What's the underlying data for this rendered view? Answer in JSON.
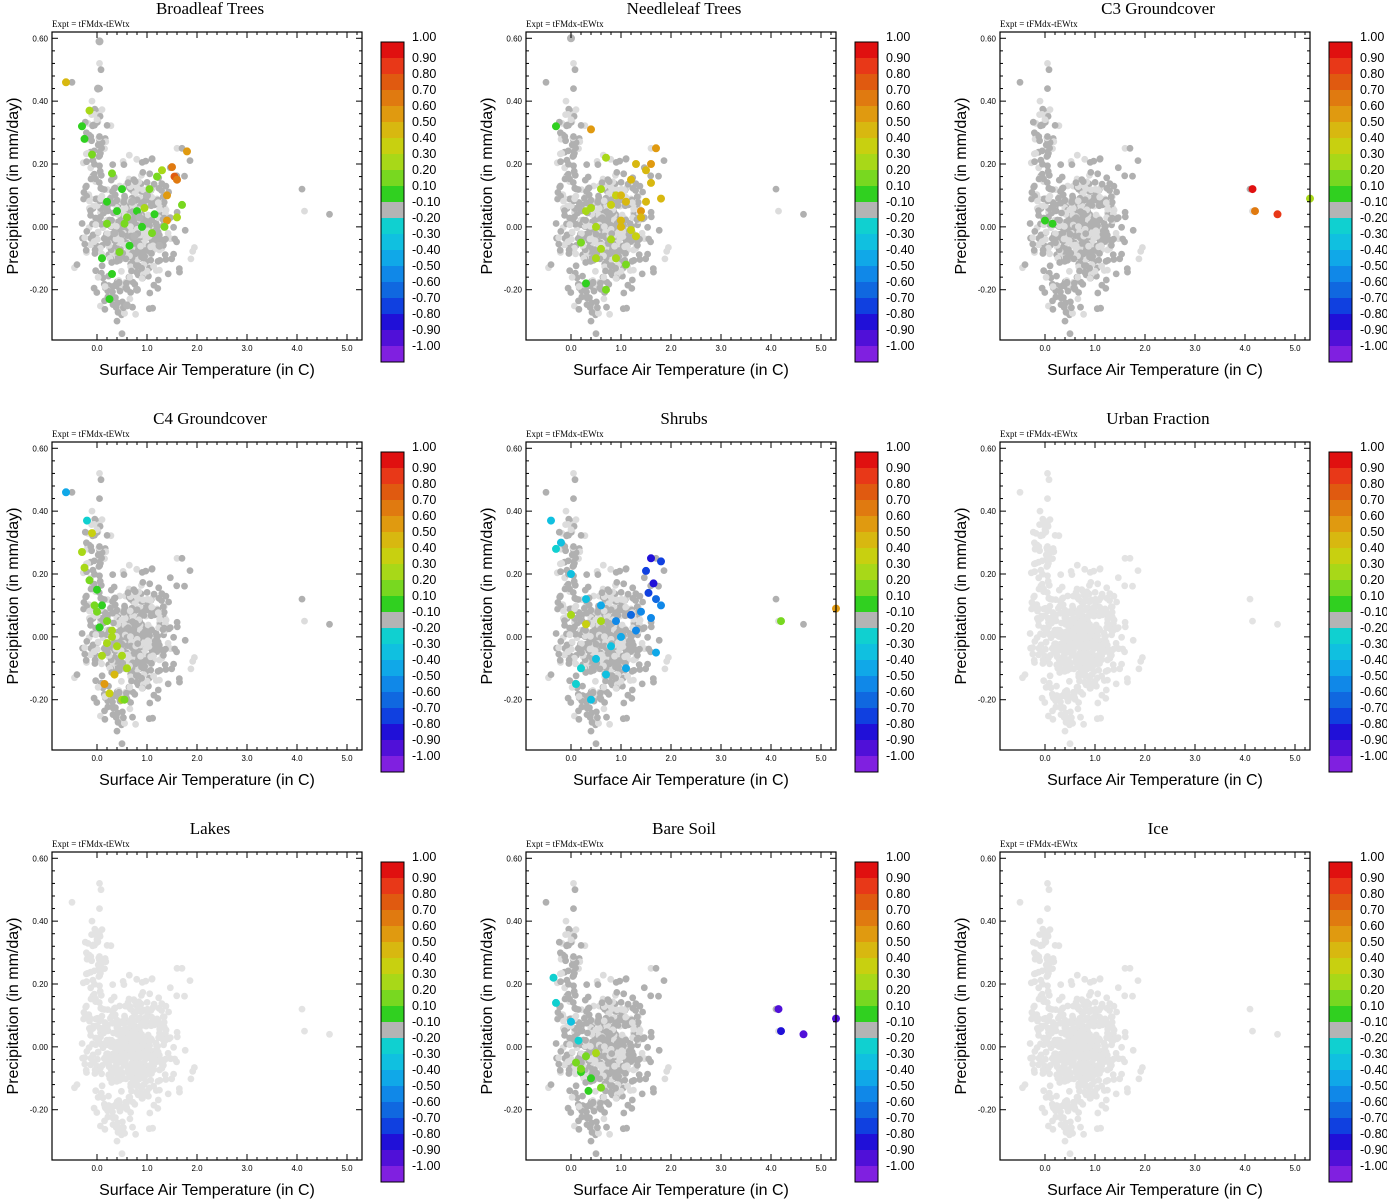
{
  "figure": {
    "expt_label": "Expt = tFMdx-tEWtx",
    "xlabel": "Surface Air Temperature (in C)",
    "ylabel": "Precipitation (in mm/day)",
    "xticks": [
      "0.0",
      "1.0",
      "2.0",
      "3.0",
      "4.0",
      "5.0"
    ],
    "yticks": [
      "-0.20",
      "0.00",
      "0.20",
      "0.40",
      "0.60"
    ],
    "xlim": [
      -0.9,
      5.3
    ],
    "ylim": [
      -0.36,
      0.62
    ],
    "colorbar": {
      "labels": [
        "1.00",
        "0.90",
        "0.80",
        "0.70",
        "0.60",
        "0.50",
        "0.40",
        "0.30",
        "0.20",
        "0.10",
        "-0.10",
        "-0.20",
        "-0.30",
        "-0.40",
        "-0.50",
        "-0.60",
        "-0.70",
        "-0.80",
        "-0.90",
        "-1.00"
      ],
      "colors": [
        "#e01010",
        "#e83818",
        "#e05a10",
        "#e07a10",
        "#e09a10",
        "#d8b810",
        "#c8d010",
        "#a8d818",
        "#78d820",
        "#30d020",
        "#b4b4b4",
        "#10d0d0",
        "#10c0e0",
        "#10a8e8",
        "#1088e8",
        "#1068e0",
        "#1040e0",
        "#2010d8",
        "#5010d8",
        "#8020e0"
      ]
    },
    "notes_outliers": "Outlier points near x=4.1-4.7, y=0.04-0.12 and right-edge point near x=5.3, y=0.09",
    "color_legend": {
      "neutral_gray": "#b4b4b4",
      "no_data": "#e3e3e3"
    }
  },
  "chart_data": [
    {
      "type": "scatter",
      "title": "Broadleaf Trees",
      "x": [
        -0.62,
        0.05,
        -0.15,
        -0.3,
        -0.25,
        0.02,
        -0.1,
        0.3,
        0.5,
        0.7,
        0.8,
        1.0,
        1.2,
        1.3,
        1.5,
        1.55,
        1.6,
        1.8,
        0.4,
        0.6,
        0.9,
        1.1,
        1.4,
        1.7,
        0.2,
        0.35,
        0.55,
        0.75,
        0.95,
        1.15,
        1.35,
        1.25,
        0.45,
        0.65,
        0.85,
        1.05,
        0.1,
        0.25,
        0.3,
        0.2,
        0.6,
        0.8,
        1.4,
        1.6
      ],
      "y": [
        0.46,
        0.59,
        0.37,
        0.32,
        0.28,
        0.44,
        0.23,
        0.17,
        0.12,
        0.08,
        0.05,
        0.1,
        0.16,
        0.18,
        0.19,
        0.16,
        0.15,
        0.24,
        0.05,
        0.03,
        0.0,
        -0.02,
        0.02,
        0.07,
        0.08,
        -0.02,
        0.01,
        -0.03,
        0.06,
        0.04,
        0.0,
        -0.06,
        -0.08,
        -0.06,
        0.03,
        0.12,
        -0.1,
        -0.23,
        -0.15,
        0.01,
        -0.25,
        -0.2,
        0.1,
        0.03
      ],
      "values": [
        0.5,
        0.1,
        0.3,
        0.15,
        0.15,
        0.1,
        0.2,
        0.2,
        0.15,
        0.1,
        0.15,
        0.1,
        0.2,
        0.25,
        0.7,
        0.75,
        0.7,
        0.6,
        0.15,
        0.2,
        0.15,
        0.2,
        0.6,
        0.2,
        0.15,
        0.1,
        0.2,
        0.1,
        0.3,
        0.15,
        0.2,
        0.1,
        0.2,
        0.15,
        0.1,
        0.2,
        0.15,
        0.15,
        0.15,
        0.2,
        0.1,
        0.1,
        0.6,
        0.3
      ],
      "xlabel": "Surface Air Temperature (in C)",
      "ylabel": "Precipitation (in mm/day)"
    },
    {
      "type": "scatter",
      "title": "Needleleaf Trees",
      "x": [
        -0.3,
        0.0,
        0.4,
        0.7,
        0.9,
        1.1,
        1.3,
        1.5,
        1.7,
        1.2,
        1.4,
        0.6,
        0.8,
        1.0,
        1.2,
        0.5,
        0.3,
        0.2,
        0.6,
        0.8,
        1.0,
        1.6,
        1.8,
        0.4,
        0.9,
        1.1,
        1.3,
        0.3,
        0.7,
        1.5,
        1.0,
        1.6,
        1.4,
        0.5
      ],
      "y": [
        0.32,
        0.6,
        0.31,
        0.22,
        0.1,
        0.08,
        0.2,
        0.18,
        0.25,
        0.15,
        0.05,
        0.12,
        0.07,
        0.02,
        -0.01,
        0.0,
        0.05,
        -0.05,
        -0.07,
        -0.04,
        0.1,
        0.14,
        0.09,
        0.06,
        -0.1,
        -0.12,
        -0.03,
        -0.18,
        -0.2,
        0.08,
        0.0,
        0.2,
        0.03,
        -0.1
      ],
      "values": [
        0.15,
        0.1,
        0.6,
        0.35,
        0.4,
        0.5,
        0.45,
        0.5,
        0.6,
        0.5,
        0.55,
        0.3,
        0.4,
        0.45,
        0.4,
        0.25,
        0.3,
        0.2,
        0.3,
        0.35,
        0.45,
        0.5,
        0.45,
        0.3,
        0.25,
        0.2,
        0.4,
        0.15,
        0.2,
        0.5,
        0.5,
        0.55,
        0.5,
        0.3
      ],
      "xlabel": "Surface Air Temperature (in C)",
      "ylabel": "Precipitation (in mm/day)"
    },
    {
      "type": "scatter",
      "title": "C3 Groundcover",
      "x": [
        0.0,
        0.15,
        4.15,
        4.2,
        4.65,
        5.3
      ],
      "y": [
        0.02,
        0.01,
        0.12,
        0.05,
        0.04,
        0.09
      ],
      "values": [
        0.15,
        0.15,
        0.95,
        0.7,
        0.9,
        0.3
      ],
      "xlabel": "Surface Air Temperature (in C)",
      "ylabel": "Precipitation (in mm/day)"
    },
    {
      "type": "scatter",
      "title": "C4 Groundcover",
      "x": [
        -0.62,
        -0.2,
        -0.1,
        -0.3,
        -0.25,
        -0.15,
        0.0,
        0.1,
        0.2,
        0.3,
        0.4,
        0.5,
        0.6,
        0.0,
        0.2,
        0.35,
        0.15,
        0.05,
        -0.05,
        0.25,
        0.5,
        0.55,
        0.1,
        0.3
      ],
      "y": [
        0.46,
        0.37,
        0.33,
        0.27,
        0.22,
        0.18,
        0.15,
        0.1,
        0.05,
        0.0,
        -0.03,
        -0.06,
        -0.1,
        0.08,
        -0.02,
        -0.12,
        -0.15,
        0.03,
        0.1,
        -0.18,
        -0.2,
        -0.2,
        -0.06,
        0.02
      ],
      "values": [
        -0.45,
        -0.25,
        0.4,
        0.3,
        0.35,
        0.2,
        0.15,
        0.15,
        0.2,
        0.3,
        0.35,
        0.3,
        0.25,
        0.2,
        0.3,
        0.5,
        0.6,
        0.15,
        0.2,
        0.4,
        0.35,
        0.2,
        0.3,
        0.35
      ],
      "xlabel": "Surface Air Temperature (in C)",
      "ylabel": "Precipitation (in mm/day)"
    },
    {
      "type": "scatter",
      "title": "Shrubs",
      "x": [
        -0.4,
        -0.2,
        -0.3,
        0.0,
        0.3,
        0.6,
        0.9,
        1.2,
        1.5,
        1.6,
        1.8,
        1.65,
        1.55,
        1.7,
        1.4,
        1.3,
        1.0,
        0.8,
        0.5,
        0.2,
        0.1,
        0.4,
        0.3,
        1.6,
        1.8,
        1.7,
        1.1,
        0.7,
        0.0,
        0.6,
        4.2,
        5.3
      ],
      "y": [
        0.37,
        0.3,
        0.28,
        0.2,
        0.12,
        0.1,
        0.05,
        0.07,
        0.21,
        0.25,
        0.24,
        0.17,
        0.14,
        0.12,
        0.08,
        0.02,
        0.0,
        -0.03,
        -0.07,
        -0.1,
        -0.15,
        -0.2,
        0.04,
        0.06,
        0.1,
        -0.05,
        -0.1,
        -0.12,
        0.07,
        0.05,
        0.05,
        0.09
      ],
      "values": [
        -0.3,
        -0.3,
        -0.2,
        -0.3,
        -0.35,
        -0.4,
        -0.5,
        -0.6,
        -0.75,
        -0.8,
        -0.75,
        -0.8,
        -0.7,
        -0.65,
        -0.55,
        -0.5,
        -0.4,
        -0.35,
        -0.3,
        -0.25,
        -0.2,
        -0.3,
        0.4,
        -0.5,
        -0.55,
        -0.45,
        -0.4,
        -0.3,
        0.35,
        0.3,
        0.2,
        0.6
      ],
      "xlabel": "Surface Air Temperature (in C)",
      "ylabel": "Precipitation (in mm/day)"
    },
    {
      "type": "scatter",
      "title": "Urban Fraction",
      "x": [],
      "y": [],
      "values": [],
      "xlabel": "Surface Air Temperature (in C)",
      "ylabel": "Precipitation (in mm/day)"
    },
    {
      "type": "scatter",
      "title": "Lakes",
      "x": [],
      "y": [],
      "values": [],
      "xlabel": "Surface Air Temperature (in C)",
      "ylabel": "Precipitation (in mm/day)"
    },
    {
      "type": "scatter",
      "title": "Bare Soil",
      "x": [
        -0.35,
        -0.3,
        0.0,
        0.1,
        0.2,
        0.3,
        0.4,
        0.5,
        0.2,
        0.35,
        0.6,
        0.15,
        4.15,
        4.2,
        4.65,
        5.3
      ],
      "y": [
        0.22,
        0.14,
        0.08,
        -0.05,
        -0.08,
        -0.03,
        -0.1,
        -0.02,
        -0.07,
        -0.14,
        -0.13,
        0.02,
        0.12,
        0.05,
        0.04,
        0.09
      ],
      "values": [
        -0.25,
        -0.25,
        -0.3,
        0.2,
        0.15,
        0.2,
        0.15,
        0.3,
        0.2,
        0.15,
        0.2,
        -0.2,
        -0.9,
        -0.85,
        -0.9,
        -0.9
      ],
      "xlabel": "Surface Air Temperature (in C)",
      "ylabel": "Precipitation (in mm/day)"
    },
    {
      "type": "scatter",
      "title": "Ice",
      "x": [],
      "y": [],
      "values": [],
      "xlabel": "Surface Air Temperature (in C)",
      "ylabel": "Precipitation (in mm/day)"
    }
  ]
}
